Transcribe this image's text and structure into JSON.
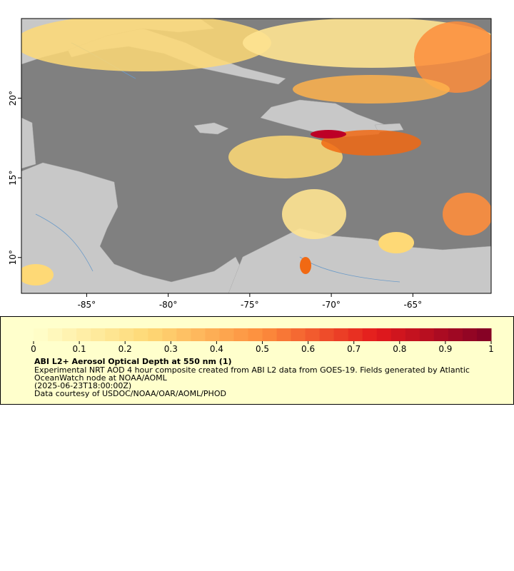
{
  "chart_data": {
    "type": "map",
    "xlim": [
      -89,
      -60.2
    ],
    "ylim": [
      7.75,
      25
    ],
    "xticks": [
      {
        "value": -85,
        "label": "-85°"
      },
      {
        "value": -80,
        "label": "-80°"
      },
      {
        "value": -75,
        "label": "-75°"
      },
      {
        "value": -70,
        "label": "-70°"
      },
      {
        "value": -65,
        "label": "-65°"
      }
    ],
    "yticks": [
      {
        "value": 10,
        "label": "10°"
      },
      {
        "value": 15,
        "label": "15°"
      },
      {
        "value": 20,
        "label": "20°"
      }
    ],
    "colorbar": {
      "range": [
        0,
        1
      ],
      "ticks": [
        0,
        0.1,
        0.2,
        0.3,
        0.4,
        0.5,
        0.6,
        0.7,
        0.8,
        0.9,
        1
      ],
      "colormap": [
        "#ffffcc",
        "#fed976",
        "#fd8d3c",
        "#e31a1c",
        "#800026"
      ],
      "steps": 32
    },
    "title": "ABI L2+ Aerosol Optical Depth at 550 nm (1)",
    "description": [
      "Experimental NRT AOD 4 hour composite created from ABI L2 data from GOES-19. Fields generated by Atlantic",
      "OceanWatch node at NOAA/AOML",
      "(2025-06-23T18:00:00Z)",
      "Data courtesy of USDOC/NOAA/OAR/AOML/PHOD"
    ]
  }
}
